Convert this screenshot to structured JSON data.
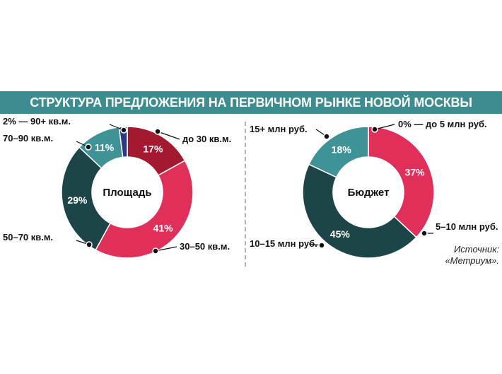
{
  "title": "СТРУКТУРА ПРЕДЛОЖЕНИЯ НА ПЕРВИЧНОМ РЫНКЕ НОВОЙ МОСКВЫ",
  "source": [
    "Источник:",
    "«Метриум»."
  ],
  "colors": {
    "banner": "#3d8c8f",
    "dark_red": "#a3192f",
    "crimson": "#e0305a",
    "dark_teal": "#1d4447",
    "teal": "#3f9396",
    "navy": "#2e3a80"
  },
  "chart_data": [
    {
      "type": "pie",
      "center_label": "Площадь",
      "segments": [
        {
          "label": "до 30 кв.м.",
          "value": 17,
          "display": "17%",
          "color": "#a3192f"
        },
        {
          "label": "30–50 кв.м.",
          "value": 41,
          "display": "41%",
          "color": "#e0305a"
        },
        {
          "label": "50–70 кв.м.",
          "value": 29,
          "display": "29%",
          "color": "#1d4447"
        },
        {
          "label": "70–90 кв.м.",
          "value": 11,
          "display": "11%",
          "color": "#3f9396"
        },
        {
          "label": "2% — 90+ кв.м.",
          "value": 2,
          "display": "",
          "color": "#2e3a80"
        }
      ]
    },
    {
      "type": "pie",
      "center_label": "Бюджет",
      "segments": [
        {
          "label": "0% — до 5 млн руб.",
          "value": 0,
          "display": "",
          "color": "#a3192f"
        },
        {
          "label": "5–10 млн руб.",
          "value": 37,
          "display": "37%",
          "color": "#e0305a"
        },
        {
          "label": "10–15 млн руб.",
          "value": 45,
          "display": "45%",
          "color": "#1d4447"
        },
        {
          "label": "15+ млн руб.",
          "value": 18,
          "display": "18%",
          "color": "#3f9396"
        }
      ]
    }
  ]
}
